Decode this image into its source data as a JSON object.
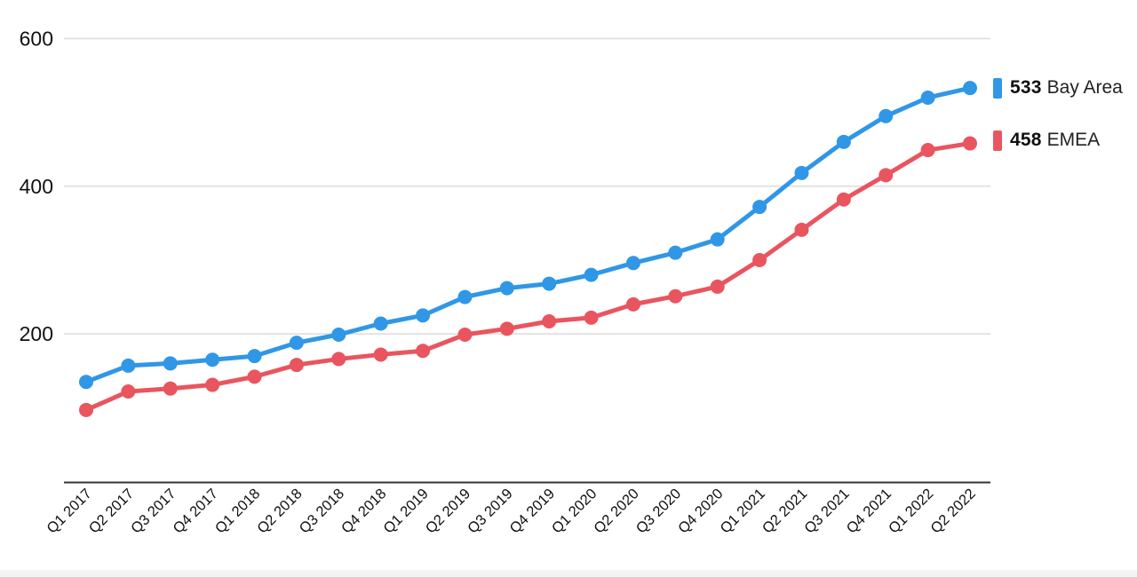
{
  "chart_data": {
    "type": "line",
    "title": "",
    "xlabel": "",
    "ylabel": "",
    "categories": [
      "Q1 2017",
      "Q2 2017",
      "Q3 2017",
      "Q4 2017",
      "Q1 2018",
      "Q2 2018",
      "Q3 2018",
      "Q4 2018",
      "Q1 2019",
      "Q2 2019",
      "Q3 2019",
      "Q4 2019",
      "Q1 2020",
      "Q2 2020",
      "Q3 2020",
      "Q4 2020",
      "Q1 2021",
      "Q2 2021",
      "Q3 2021",
      "Q4 2021",
      "Q1 2022",
      "Q2 2022"
    ],
    "series": [
      {
        "name": "Bay Area",
        "color": "#3097E6",
        "values": [
          135,
          157,
          160,
          165,
          170,
          188,
          199,
          214,
          225,
          250,
          262,
          268,
          280,
          296,
          310,
          328,
          372,
          418,
          460,
          495,
          520,
          533
        ]
      },
      {
        "name": "EMEA",
        "color": "#E9555F",
        "values": [
          97,
          122,
          126,
          131,
          142,
          158,
          166,
          172,
          177,
          199,
          207,
          217,
          222,
          240,
          251,
          264,
          300,
          341,
          382,
          415,
          449,
          458
        ]
      }
    ],
    "y_ticks": [
      200,
      400,
      600
    ],
    "ylim": [
      0,
      620
    ],
    "grid": "horizontal-only",
    "legend_position": "right-of-line-ends"
  },
  "legend": {
    "items": [
      {
        "value": "533",
        "label": "Bay Area",
        "color": "#3097E6"
      },
      {
        "value": "458",
        "label": "EMEA",
        "color": "#E9555F"
      }
    ]
  },
  "colors": {
    "background": "#ffffff",
    "gridline": "#dcdcdc",
    "axis_line": "#333333",
    "tick_text": "#111111",
    "bottom_strip": "#f4f4f4"
  }
}
